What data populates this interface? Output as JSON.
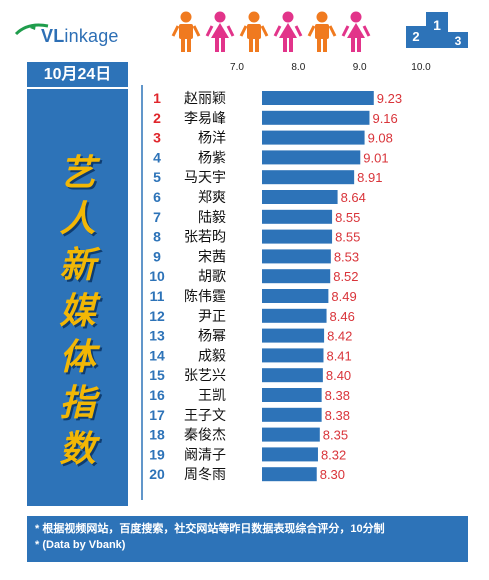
{
  "logo": {
    "text_v": "VL",
    "text_rest": "inkage"
  },
  "date": "10月24日",
  "vertical_title": [
    "艺",
    "人",
    "新",
    "媒",
    "体",
    "指",
    "数"
  ],
  "footer": {
    "line1": "* 根据视频网站，百度搜索，社交网站等昨日数据表现综合评分，10分制",
    "line2": "* (Data by Vbank)"
  },
  "podium_labels": [
    "2",
    "1",
    "3"
  ],
  "colors": {
    "blue": "#2d73b8",
    "rank_red": "#e0252b",
    "orange": "#f07a1f",
    "pink": "#e2348a",
    "value_text": "#d9343a",
    "title_yellow": "#f2b705"
  },
  "chart_data": {
    "type": "bar",
    "orientation": "horizontal",
    "xlim": [
      7.0,
      10.0
    ],
    "ticks": [
      "7.0",
      "8.0",
      "9.0",
      "10.0"
    ],
    "grid": false,
    "ranks": [
      "1",
      "2",
      "3",
      "4",
      "5",
      "6",
      "7",
      "8",
      "9",
      "10",
      "11",
      "12",
      "13",
      "14",
      "15",
      "16",
      "17",
      "18",
      "19",
      "20"
    ],
    "categories": [
      "赵丽颖",
      "李易峰",
      "杨洋",
      "杨紫",
      "马天宇",
      "郑爽",
      "陆毅",
      "张若昀",
      "宋茜",
      "胡歌",
      "陈伟霆",
      "尹正",
      "杨幂",
      "成毅",
      "张艺兴",
      "王凯",
      "王子文",
      "秦俊杰",
      "阚清子",
      "周冬雨"
    ],
    "values": [
      9.23,
      9.16,
      9.08,
      9.01,
      8.91,
      8.64,
      8.55,
      8.55,
      8.53,
      8.52,
      8.49,
      8.46,
      8.42,
      8.41,
      8.4,
      8.38,
      8.38,
      8.35,
      8.32,
      8.3
    ],
    "labels": [
      "9.23",
      "9.16",
      "9.08",
      "9.01",
      "8.91",
      "8.64",
      "8.55",
      "8.55",
      "8.53",
      "8.52",
      "8.49",
      "8.46",
      "8.42",
      "8.41",
      "8.40",
      "8.38",
      "8.38",
      "8.35",
      "8.32",
      "8.30"
    ]
  }
}
